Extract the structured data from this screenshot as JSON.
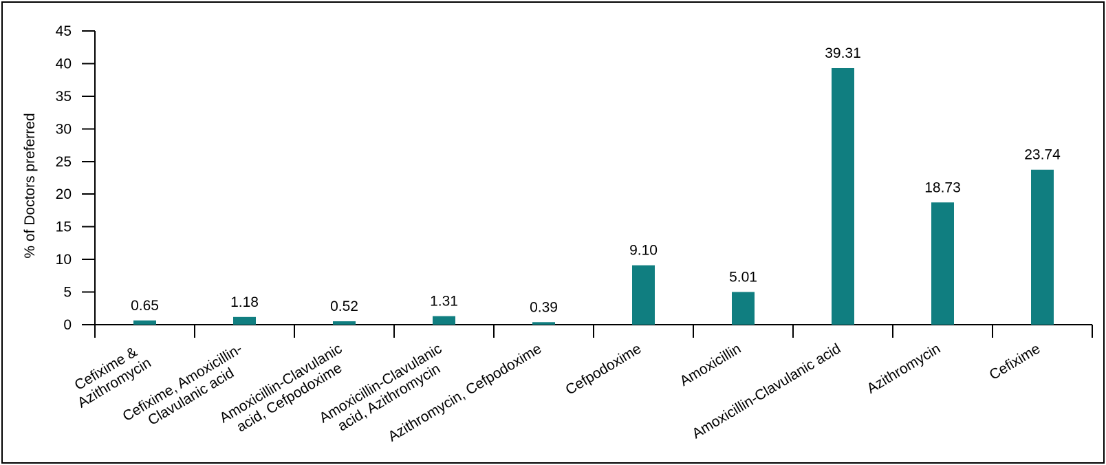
{
  "chart_data": {
    "type": "bar",
    "title": "",
    "xlabel": "",
    "ylabel": "% of Doctors preferred",
    "ylim": [
      0,
      45
    ],
    "yticks": [
      0,
      5,
      10,
      15,
      20,
      25,
      30,
      35,
      40,
      45
    ],
    "grid": false,
    "legend_position": "none",
    "bar_color": "#107E80",
    "axis_color": "#000000",
    "text_color": "#000000",
    "background_color": "#FFFFFF",
    "frame_border_color": "#000000",
    "categories": [
      "Cefixime &\nAzithromycin",
      "Cefixime, Amoxicillin-\nClavulanic acid",
      "Amoxicillin-Clavulanic\nacid, Cefpodoxime",
      "Amoxicillin-Clavulanic\nacid, Azithromycin",
      "Azithromycin, Cefpodoxime",
      "Cefpodoxime",
      "Amoxicillin",
      "Amoxicillin-Clavulanic acid",
      "Azithromycin",
      "Cefixime"
    ],
    "values": [
      0.65,
      1.18,
      0.52,
      1.31,
      0.39,
      9.1,
      5.01,
      39.31,
      18.73,
      23.74
    ],
    "data_labels": [
      "0.65",
      "1.18",
      "0.52",
      "1.31",
      "0.39",
      "9.10",
      "5.01",
      "39.31",
      "18.73",
      "23.74"
    ]
  }
}
